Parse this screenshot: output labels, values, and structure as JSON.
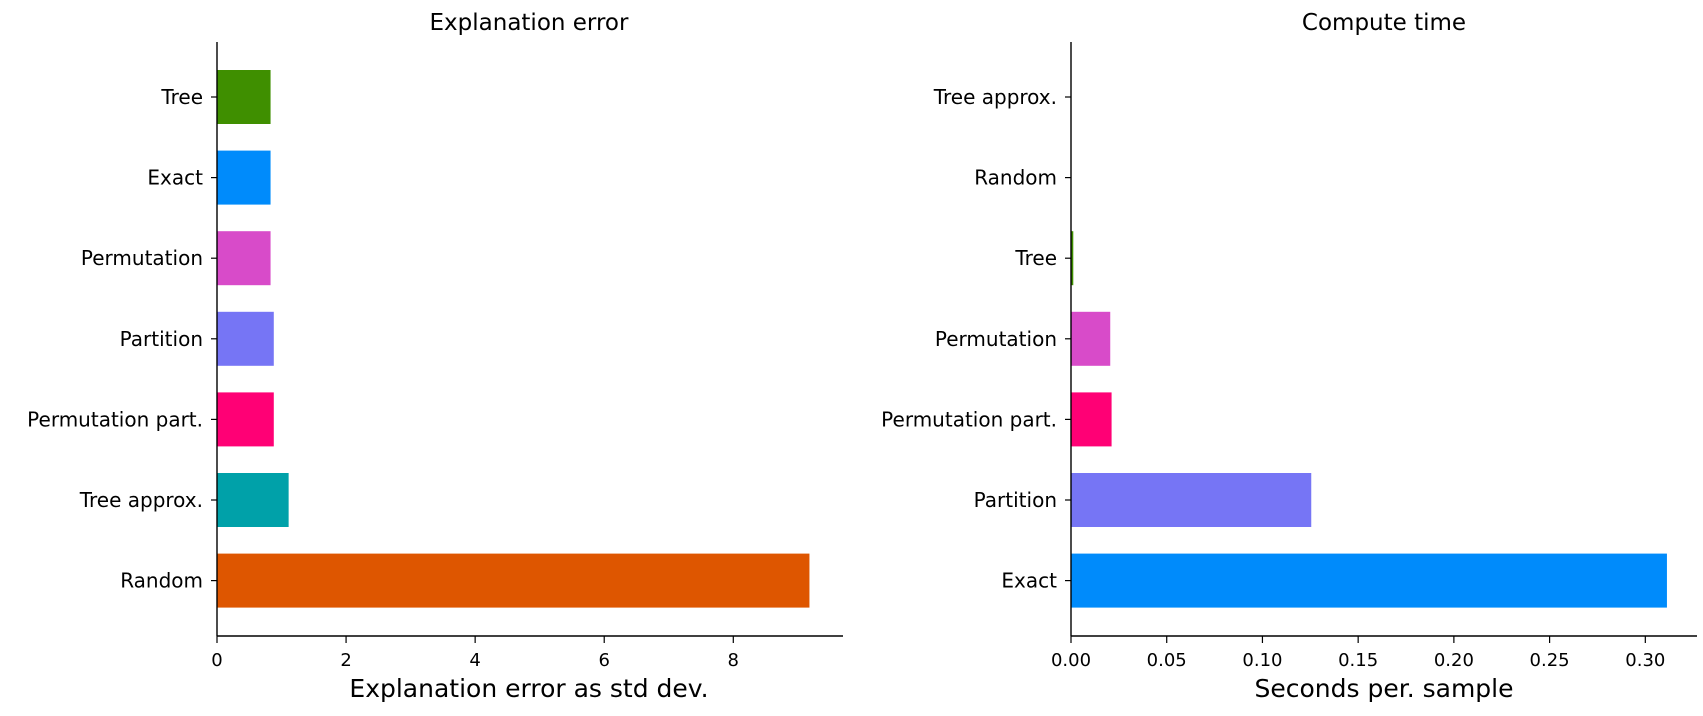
{
  "chart_data": [
    {
      "type": "bar",
      "orientation": "horizontal",
      "title": "Explanation error",
      "xlabel": "Explanation error as std dev.",
      "ylabel": "",
      "xlim": [
        0,
        9.7
      ],
      "xticks": [
        "0",
        "2",
        "4",
        "6",
        "8"
      ],
      "xtick_values": [
        0,
        2,
        4,
        6,
        8
      ],
      "grid": false,
      "categories": [
        "Tree",
        "Exact",
        "Permutation",
        "Partition",
        "Permutation part.",
        "Tree approx.",
        "Random"
      ],
      "values": [
        0.83,
        0.83,
        0.83,
        0.88,
        0.88,
        1.11,
        9.18
      ],
      "colors": [
        "#3f8f00",
        "#008bfb",
        "#d84bc9",
        "#7675f5",
        "#ff0075",
        "#00a1a9",
        "#de5600"
      ]
    },
    {
      "type": "bar",
      "orientation": "horizontal",
      "title": "Compute time",
      "xlabel": "Seconds per. sample",
      "ylabel": "",
      "xlim": [
        0,
        0.327
      ],
      "xticks": [
        "0.00",
        "0.05",
        "0.10",
        "0.15",
        "0.20",
        "0.25",
        "0.30"
      ],
      "xtick_values": [
        0,
        0.05,
        0.1,
        0.15,
        0.2,
        0.25,
        0.3
      ],
      "grid": false,
      "categories": [
        "Tree approx.",
        "Random",
        "Tree",
        "Permutation",
        "Permutation part.",
        "Partition",
        "Exact"
      ],
      "values": [
        0.0002,
        0.0002,
        0.0012,
        0.0205,
        0.0212,
        0.1255,
        0.3113
      ],
      "colors": [
        "#00a1a9",
        "#de5600",
        "#3f8f00",
        "#d84bc9",
        "#ff0075",
        "#7675f5",
        "#008bfb"
      ]
    }
  ]
}
